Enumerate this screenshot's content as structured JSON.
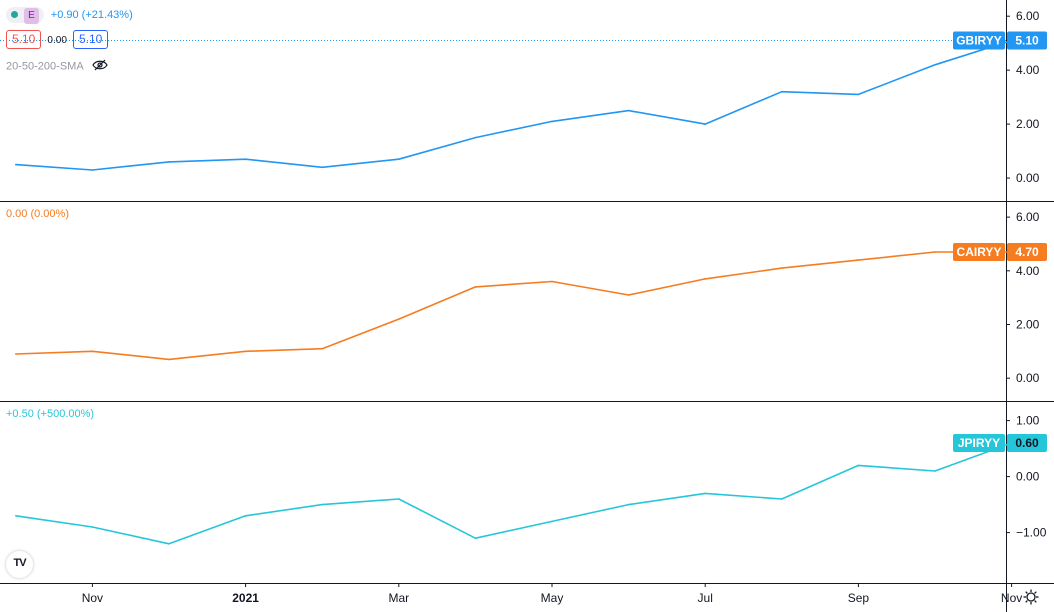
{
  "legend": {
    "badge": "E",
    "change": "+0.90 (+21.43%)",
    "val_left": "5.10",
    "val_mid": "0.00",
    "val_right": "5.10",
    "indicator": "20-50-200-SMA",
    "indicator_icon": "eye-off-icon"
  },
  "pane2_change": "0.00 (0.00%)",
  "pane3_change": "+0.50 (+500.00%)",
  "logo_text": "TV",
  "settings_icon": "gear-icon",
  "chart_data": {
    "type": "line",
    "x": [
      "Oct 2020",
      "Nov 2020",
      "Dec 2020",
      "Jan 2021",
      "Feb 2021",
      "Mar 2021",
      "Apr 2021",
      "May 2021",
      "Jun 2021",
      "Jul 2021",
      "Aug 2021",
      "Sep 2021",
      "Oct 2021",
      "Nov 2021"
    ],
    "xticks": [
      "Nov",
      "2021",
      "Mar",
      "May",
      "Jul",
      "Sep",
      "Nov"
    ],
    "panes": [
      {
        "name": "GBIRYY",
        "color": "#2196f3",
        "last": "5.10",
        "values": [
          0.5,
          0.3,
          0.6,
          0.7,
          0.4,
          0.7,
          1.5,
          2.1,
          2.5,
          2.0,
          3.2,
          3.1,
          4.2,
          5.1
        ],
        "yticks": [
          "6.00",
          "4.00",
          "2.00",
          "0.00"
        ],
        "ylim": [
          -0.85,
          6.6
        ]
      },
      {
        "name": "CAIRYY",
        "color": "#f57c20",
        "last": "4.70",
        "values": [
          0.9,
          1.0,
          0.7,
          1.0,
          1.1,
          2.2,
          3.4,
          3.6,
          3.1,
          3.7,
          4.1,
          4.4,
          4.7,
          4.7
        ],
        "yticks": [
          "6.00",
          "4.00",
          "2.00",
          "0.00"
        ],
        "ylim": [
          -0.85,
          6.6
        ]
      },
      {
        "name": "JPIRYY",
        "color": "#26c6da",
        "last": "0.60",
        "values": [
          -0.7,
          -0.9,
          -1.2,
          -0.7,
          -0.5,
          -0.4,
          -1.1,
          -0.8,
          -0.5,
          -0.3,
          -0.4,
          0.2,
          0.1,
          0.6
        ],
        "yticks": [
          "1.00",
          "0.00",
          "−1.00"
        ],
        "ylim": [
          -1.9,
          1.35
        ]
      }
    ]
  }
}
